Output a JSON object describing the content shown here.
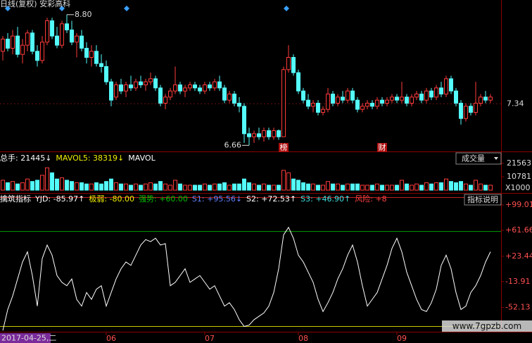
{
  "header": {
    "title": "日线(复权) 安彩高科"
  },
  "chart_data": [
    {
      "type": "candlestick",
      "candles": [
        [
          8.2,
          8.45,
          8.05,
          8.4
        ],
        [
          8.4,
          8.5,
          8.2,
          8.25
        ],
        [
          8.25,
          8.55,
          8.15,
          8.45
        ],
        [
          8.45,
          8.6,
          8.1,
          8.15
        ],
        [
          8.15,
          8.4,
          8.0,
          8.3
        ],
        [
          8.3,
          8.55,
          8.2,
          8.5
        ],
        [
          8.5,
          8.55,
          8.15,
          8.2
        ],
        [
          8.2,
          8.3,
          7.95,
          8.05
        ],
        [
          8.05,
          8.45,
          8.0,
          8.35
        ],
        [
          8.35,
          8.75,
          8.3,
          8.7
        ],
        [
          8.7,
          8.75,
          8.4,
          8.45
        ],
        [
          8.45,
          8.6,
          8.25,
          8.3
        ],
        [
          8.3,
          8.7,
          8.25,
          8.65
        ],
        [
          8.65,
          8.8,
          8.5,
          8.55
        ],
        [
          8.55,
          8.7,
          8.3,
          8.35
        ],
        [
          8.35,
          8.5,
          8.1,
          8.45
        ],
        [
          8.45,
          8.55,
          8.2,
          8.25
        ],
        [
          8.25,
          8.35,
          8.0,
          8.1
        ],
        [
          8.1,
          8.3,
          7.95,
          8.2
        ],
        [
          8.2,
          8.3,
          7.95,
          8.0
        ],
        [
          8.0,
          8.15,
          7.85,
          7.95
        ],
        [
          7.95,
          8.05,
          7.65,
          7.7
        ],
        [
          7.7,
          7.75,
          7.3,
          7.4
        ],
        [
          7.45,
          7.7,
          7.4,
          7.65
        ],
        [
          7.65,
          7.75,
          7.5,
          7.55
        ],
        [
          7.55,
          7.7,
          7.45,
          7.65
        ],
        [
          7.65,
          7.8,
          7.55,
          7.6
        ],
        [
          7.6,
          7.75,
          7.55,
          7.7
        ],
        [
          7.7,
          7.8,
          7.6,
          7.65
        ],
        [
          7.65,
          7.75,
          7.55,
          7.7
        ],
        [
          7.7,
          7.85,
          7.65,
          7.75
        ],
        [
          7.75,
          7.8,
          7.55,
          7.6
        ],
        [
          7.6,
          7.65,
          7.3,
          7.35
        ],
        [
          7.35,
          7.5,
          7.25,
          7.45
        ],
        [
          7.45,
          7.6,
          7.4,
          7.55
        ],
        [
          7.55,
          7.95,
          7.5,
          7.65
        ],
        [
          7.65,
          7.7,
          7.5,
          7.55
        ],
        [
          7.55,
          7.65,
          7.45,
          7.6
        ],
        [
          7.6,
          7.7,
          7.55,
          7.65
        ],
        [
          7.65,
          7.7,
          7.55,
          7.6
        ],
        [
          7.6,
          7.65,
          7.5,
          7.55
        ],
        [
          7.55,
          7.7,
          7.5,
          7.65
        ],
        [
          7.65,
          7.7,
          7.55,
          7.6
        ],
        [
          7.6,
          7.75,
          7.55,
          7.7
        ],
        [
          7.7,
          7.8,
          7.55,
          7.6
        ],
        [
          7.6,
          7.65,
          7.35,
          7.4
        ],
        [
          7.4,
          7.55,
          7.35,
          7.5
        ],
        [
          7.5,
          7.55,
          7.3,
          7.35
        ],
        [
          7.35,
          7.45,
          7.2,
          7.3
        ],
        [
          7.3,
          7.35,
          6.7,
          6.85
        ],
        [
          6.85,
          6.95,
          6.66,
          6.8
        ],
        [
          6.8,
          6.9,
          6.7,
          6.85
        ],
        [
          6.85,
          6.95,
          6.75,
          6.8
        ],
        [
          6.8,
          6.95,
          6.72,
          6.9
        ],
        [
          6.9,
          6.95,
          6.75,
          6.8
        ],
        [
          6.8,
          6.95,
          6.75,
          6.9
        ],
        [
          6.9,
          6.92,
          6.75,
          6.8
        ],
        [
          6.8,
          7.95,
          6.8,
          7.9
        ],
        [
          7.9,
          8.3,
          7.85,
          8.1
        ],
        [
          8.1,
          8.15,
          7.8,
          7.85
        ],
        [
          7.85,
          7.9,
          7.5,
          7.55
        ],
        [
          7.55,
          7.6,
          7.35,
          7.4
        ],
        [
          7.4,
          7.5,
          7.25,
          7.3
        ],
        [
          7.3,
          7.4,
          7.2,
          7.35
        ],
        [
          7.35,
          7.4,
          7.15,
          7.2
        ],
        [
          7.2,
          7.3,
          7.15,
          7.25
        ],
        [
          7.25,
          7.6,
          7.2,
          7.5
        ],
        [
          7.5,
          7.55,
          7.3,
          7.35
        ],
        [
          7.35,
          7.5,
          7.3,
          7.45
        ],
        [
          7.45,
          7.55,
          7.35,
          7.4
        ],
        [
          7.4,
          7.6,
          7.35,
          7.55
        ],
        [
          7.55,
          7.6,
          7.35,
          7.4
        ],
        [
          7.4,
          7.45,
          7.2,
          7.25
        ],
        [
          7.25,
          7.35,
          7.2,
          7.3
        ],
        [
          7.3,
          7.4,
          7.25,
          7.35
        ],
        [
          7.35,
          7.4,
          7.25,
          7.3
        ],
        [
          7.3,
          7.45,
          7.25,
          7.4
        ],
        [
          7.4,
          7.45,
          7.3,
          7.35
        ],
        [
          7.35,
          7.45,
          7.3,
          7.4
        ],
        [
          7.4,
          7.5,
          7.35,
          7.45
        ],
        [
          7.45,
          7.5,
          7.35,
          7.4
        ],
        [
          7.4,
          7.7,
          7.35,
          7.45
        ],
        [
          7.45,
          7.5,
          7.3,
          7.35
        ],
        [
          7.35,
          7.5,
          7.3,
          7.45
        ],
        [
          7.45,
          7.55,
          7.4,
          7.5
        ],
        [
          7.5,
          7.55,
          7.35,
          7.4
        ],
        [
          7.4,
          7.6,
          7.35,
          7.55
        ],
        [
          7.55,
          7.6,
          7.4,
          7.45
        ],
        [
          7.45,
          7.65,
          7.4,
          7.6
        ],
        [
          7.6,
          7.7,
          7.45,
          7.5
        ],
        [
          7.5,
          7.8,
          7.45,
          7.75
        ],
        [
          7.75,
          7.8,
          7.5,
          7.55
        ],
        [
          7.55,
          7.6,
          7.3,
          7.35
        ],
        [
          7.35,
          7.4,
          7.0,
          7.1
        ],
        [
          7.1,
          7.35,
          7.05,
          7.3
        ],
        [
          7.3,
          7.35,
          7.15,
          7.2
        ],
        [
          7.2,
          7.7,
          7.15,
          7.35
        ],
        [
          7.35,
          7.5,
          7.3,
          7.45
        ],
        [
          7.45,
          7.55,
          7.35,
          7.4
        ],
        [
          7.4,
          7.5,
          7.35,
          7.45
        ]
      ],
      "up_color": "#ff3b3b",
      "down_color": "#54fcfc",
      "ylim": [
        6.56,
        9.04
      ],
      "yticks": [
        7.34
      ],
      "max_label": "8.80",
      "min_label": "6.66",
      "events": [
        {
          "label": "榜",
          "index": 57
        },
        {
          "label": "财",
          "index": 77
        }
      ]
    },
    {
      "type": "volume",
      "legend": [
        {
          "text": "总手: 21445↓",
          "color": "#ffffff"
        },
        {
          "text": "MAVOL5: 38319↓",
          "color": "#f0f000"
        },
        {
          "text": "MAVOL",
          "color": "#ffffff"
        }
      ],
      "button": "成交量",
      "values": [
        8000,
        6000,
        7000,
        5000,
        6000,
        9000,
        7000,
        8000,
        12000,
        18000,
        14000,
        9000,
        10000,
        8000,
        7000,
        6000,
        6000,
        5000,
        5000,
        6000,
        5000,
        7000,
        9000,
        6000,
        5000,
        5000,
        4000,
        5000,
        4000,
        5000,
        6000,
        5000,
        7000,
        5000,
        4000,
        8000,
        5000,
        4000,
        4000,
        4000,
        4000,
        5000,
        4000,
        5000,
        5000,
        6000,
        4000,
        5000,
        5000,
        9000,
        6000,
        5000,
        4000,
        5000,
        4000,
        4000,
        4000,
        16000,
        14000,
        9000,
        8000,
        6000,
        5000,
        5000,
        4000,
        4000,
        7000,
        5000,
        5000,
        4000,
        5000,
        5000,
        5000,
        4000,
        4000,
        4000,
        5000,
        4000,
        4000,
        4000,
        4000,
        8000,
        5000,
        4000,
        5000,
        4000,
        6000,
        5000,
        6000,
        6000,
        9000,
        7000,
        6000,
        7000,
        5000,
        4000,
        8000,
        5000,
        4000,
        4000
      ],
      "ylim": [
        0,
        30070
      ],
      "yticks": [
        21563,
        10781
      ],
      "unit": "X1000"
    },
    {
      "type": "line",
      "legend": [
        {
          "text": "擒筑指标",
          "color": "#ffffff"
        },
        {
          "text": "YJD: -85.97↑",
          "color": "#ffffff"
        },
        {
          "text": "极弱: -80.00",
          "color": "#f0f000"
        },
        {
          "text": "强势: +60.00",
          "color": "#00c000"
        },
        {
          "text": "S1: +95.56↓",
          "color": "#6080ff"
        },
        {
          "text": "S2: +72.53↑",
          "color": "#ffffff"
        },
        {
          "text": "S3: +46.90↑",
          "color": "#40e0e0"
        },
        {
          "text": "风险: +8",
          "color": "#ff4040"
        }
      ],
      "button": "指标说明",
      "series": [
        {
          "color": "#ffffff",
          "values": [
            -85.97,
            -55,
            -35,
            -10,
            15,
            30,
            -5,
            -50,
            20,
            40,
            25,
            -5,
            -15,
            -20,
            -10,
            -40,
            -50,
            -30,
            -40,
            -25,
            -20,
            -50,
            -30,
            -10,
            5,
            15,
            10,
            25,
            40,
            48,
            45,
            50,
            40,
            42,
            -20,
            -15,
            -5,
            5,
            -15,
            -10,
            -5,
            -15,
            -25,
            -20,
            -35,
            -50,
            -45,
            -55,
            -70,
            -80,
            -78,
            -70,
            -65,
            -60,
            -50,
            -30,
            5,
            55,
            66,
            50,
            25,
            15,
            0,
            -15,
            -40,
            -58,
            -45,
            -30,
            -10,
            5,
            25,
            40,
            15,
            -20,
            -50,
            -40,
            -30,
            -10,
            10,
            35,
            50,
            30,
            0,
            -20,
            -40,
            -55,
            -58,
            -45,
            -25,
            10,
            25,
            5,
            -30,
            -55,
            -50,
            -30,
            -20,
            -5,
            15,
            30
          ]
        }
      ],
      "levels": [
        {
          "value": 60,
          "color": "#00a000"
        },
        {
          "value": -80,
          "color": "#c8c800"
        }
      ],
      "ylim": [
        -86.7,
        112.5
      ],
      "yticks": [
        {
          "value": 99.01,
          "label": "+99.01"
        },
        {
          "value": 61.66,
          "label": "+61.66"
        },
        {
          "value": 23.44,
          "label": "+23.44"
        },
        {
          "value": -13.91,
          "label": "-13.91"
        },
        {
          "value": -52.13,
          "label": "-52.13"
        }
      ]
    }
  ],
  "x_axis": {
    "cursor_label": "2017-04-25,二",
    "ticks": [
      {
        "value": 21,
        "label": "06"
      },
      {
        "value": 41,
        "label": "07"
      },
      {
        "value": 60,
        "label": "08"
      },
      {
        "value": 80,
        "label": "09"
      }
    ]
  },
  "watermark": "www.7gpzb.com"
}
